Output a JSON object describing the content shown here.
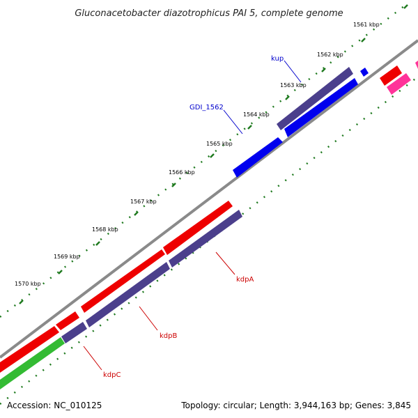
{
  "title": "Gluconacetobacter diazotrophicus PAI 5, complete genome",
  "footer": {
    "accession": "Accession: NC_010125",
    "topology": "Topology: circular; Length: 3,944,163 bp; Genes: 3,845"
  },
  "ticks": [
    "1561 kbp",
    "1562 kbp",
    "1563 kbp",
    "1564 kbp",
    "1565 kbp",
    "1566 kbp",
    "1567 kbp",
    "1568 kbp",
    "1569 kbp",
    "1570 kbp"
  ],
  "genes": {
    "kup": {
      "label": "kup",
      "color": "#0000cc"
    },
    "gdi": {
      "label": "GDI_1562",
      "color": "#0000cc"
    },
    "kdpA": {
      "label": "kdpA",
      "color": "#cc0000"
    },
    "kdpB": {
      "label": "kdpB",
      "color": "#cc0000"
    },
    "kdpC": {
      "label": "kdpC",
      "color": "#cc0000"
    }
  },
  "colors": {
    "backbone": "#8a8a8a",
    "tick": "#1f7a1f",
    "red_feature": "#ee0000",
    "purple_feature": "#4b3f8c",
    "blue_feature": "#0000ee",
    "green_feature": "#33bb33",
    "pink_feature": "#ff3399"
  }
}
